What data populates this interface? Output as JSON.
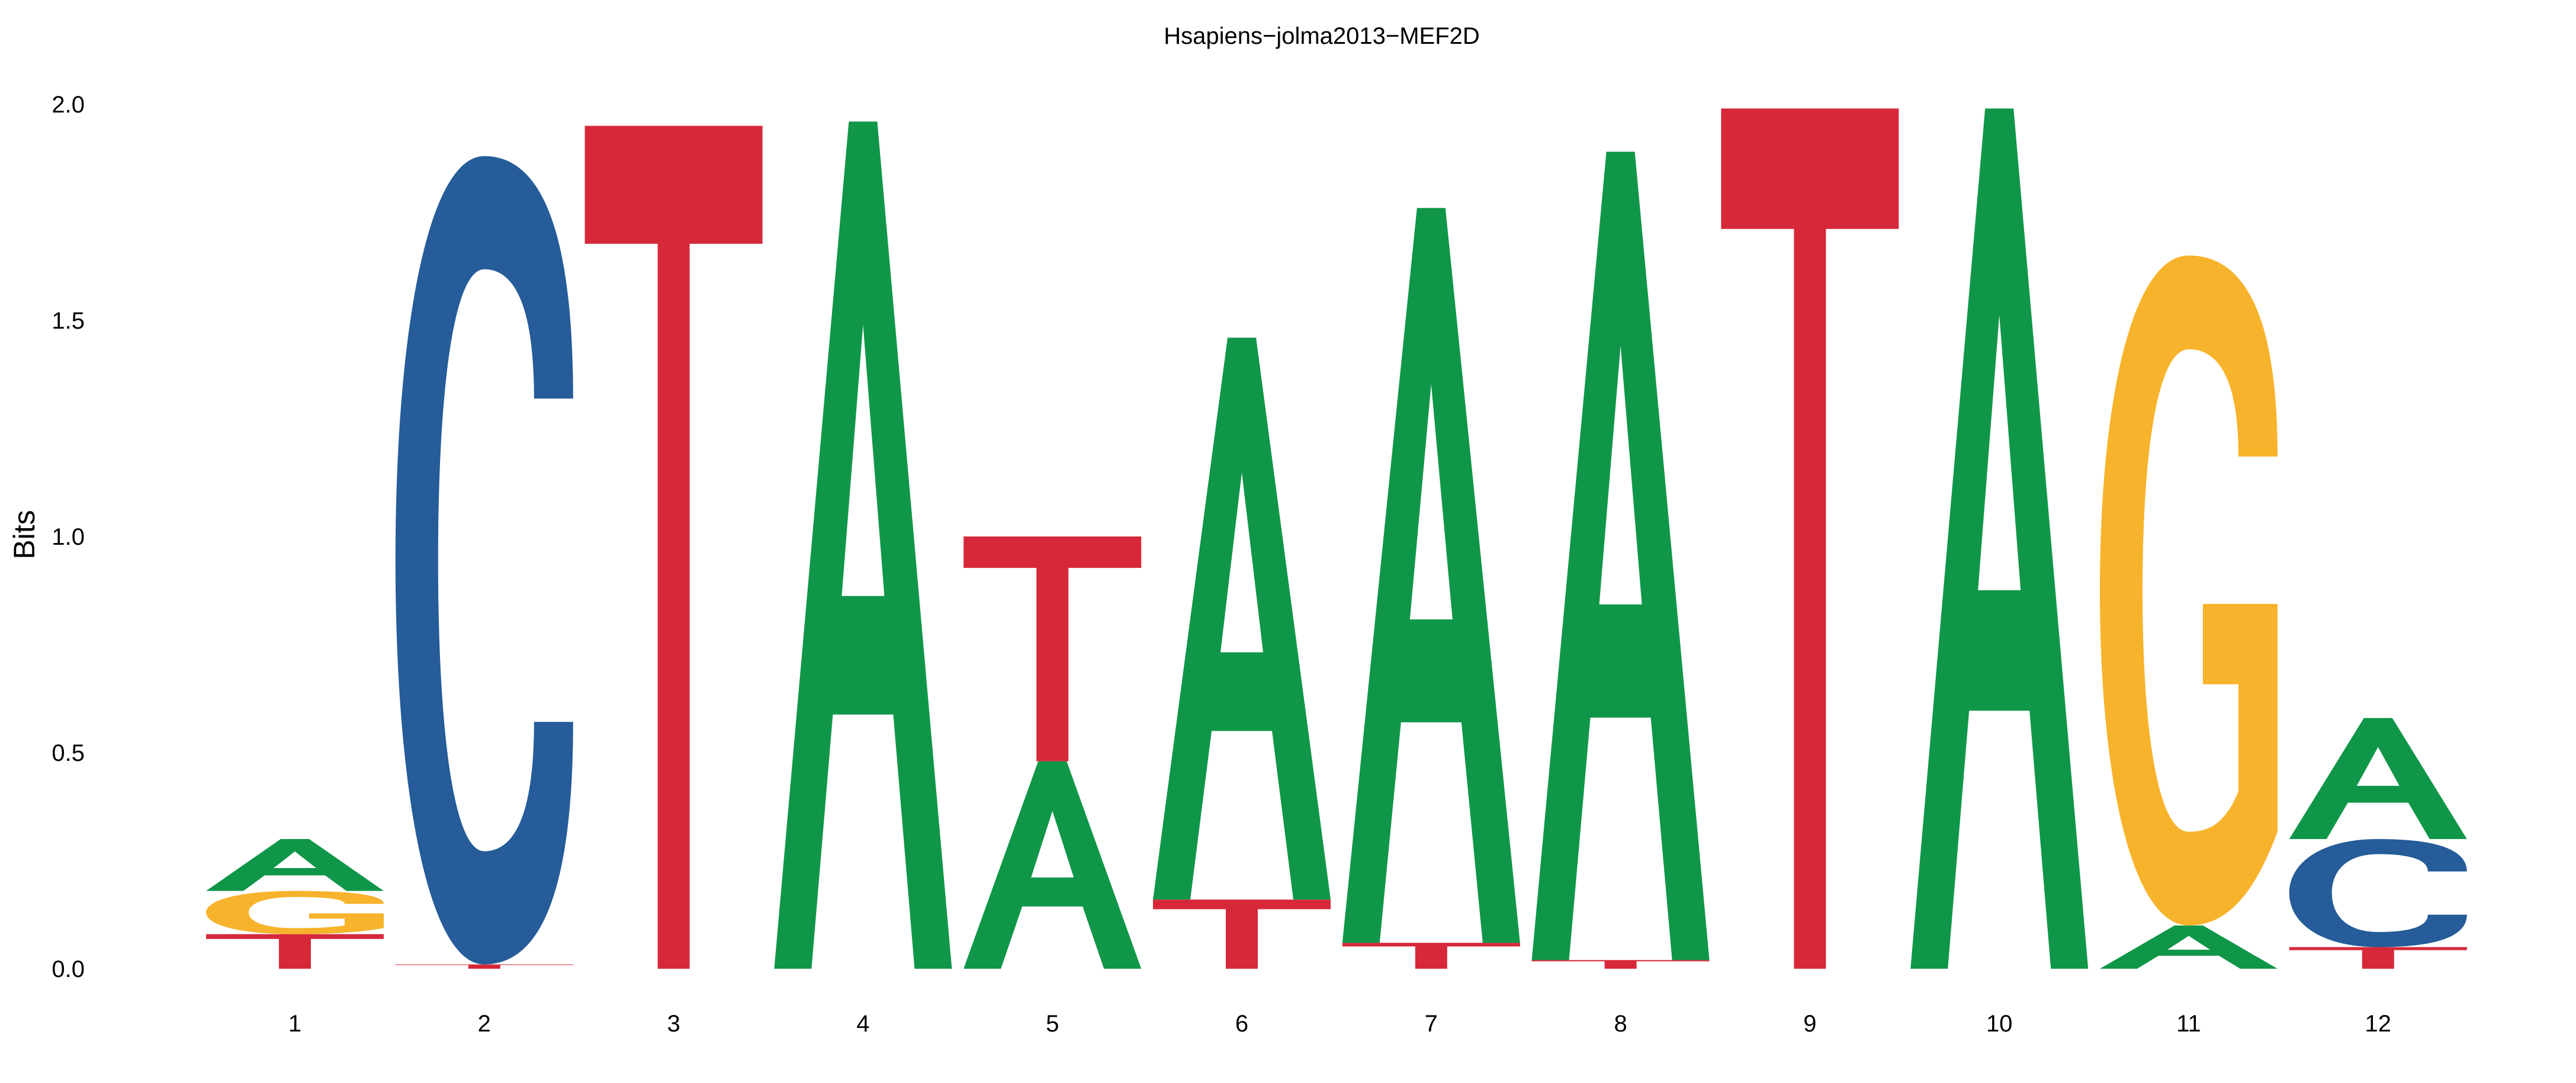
{
  "chart_data": {
    "type": "sequence-logo",
    "title": "Hsapiens−jolma2013−MEF2D",
    "xlabel": "",
    "ylabel": "Bits",
    "ylim": [
      0,
      2
    ],
    "yticks": [
      "0.0",
      "0.5",
      "1.0",
      "1.5",
      "2.0"
    ],
    "xticks": [
      "1",
      "2",
      "3",
      "4",
      "5",
      "6",
      "7",
      "8",
      "9",
      "10",
      "11",
      "12"
    ],
    "grid": false,
    "colors": {
      "A": "#109648",
      "C": "#255C99",
      "G": "#F7B32B",
      "T": "#D62839"
    },
    "positions": [
      {
        "pos": 1,
        "stack": [
          [
            "T",
            0.08
          ],
          [
            "G",
            0.1
          ],
          [
            "A",
            0.12
          ]
        ]
      },
      {
        "pos": 2,
        "stack": [
          [
            "T",
            0.01
          ],
          [
            "C",
            1.87
          ]
        ]
      },
      {
        "pos": 3,
        "stack": [
          [
            "T",
            1.95
          ]
        ]
      },
      {
        "pos": 4,
        "stack": [
          [
            "A",
            1.96
          ]
        ]
      },
      {
        "pos": 5,
        "stack": [
          [
            "A",
            0.48
          ],
          [
            "T",
            0.52
          ]
        ]
      },
      {
        "pos": 6,
        "stack": [
          [
            "T",
            0.16
          ],
          [
            "A",
            1.3
          ]
        ]
      },
      {
        "pos": 7,
        "stack": [
          [
            "T",
            0.06
          ],
          [
            "A",
            1.7
          ]
        ]
      },
      {
        "pos": 8,
        "stack": [
          [
            "T",
            0.02
          ],
          [
            "A",
            1.87
          ]
        ]
      },
      {
        "pos": 9,
        "stack": [
          [
            "T",
            1.99
          ]
        ]
      },
      {
        "pos": 10,
        "stack": [
          [
            "A",
            1.99
          ]
        ]
      },
      {
        "pos": 11,
        "stack": [
          [
            "A",
            0.1
          ],
          [
            "G",
            1.55
          ]
        ]
      },
      {
        "pos": 12,
        "stack": [
          [
            "T",
            0.05
          ],
          [
            "C",
            0.25
          ],
          [
            "A",
            0.28
          ]
        ]
      }
    ]
  }
}
